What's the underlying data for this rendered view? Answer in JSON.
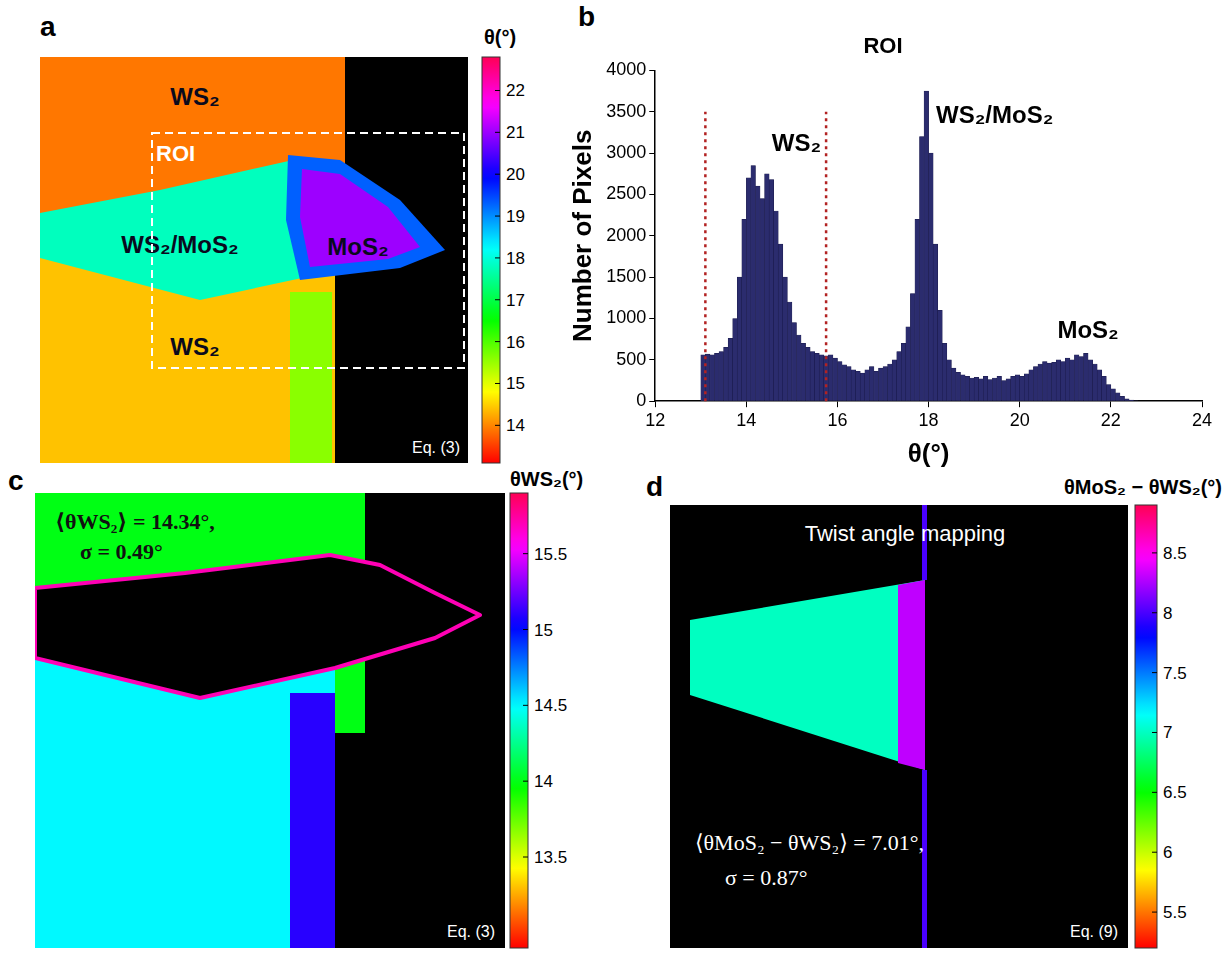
{
  "chart_data": [
    {
      "panel": "a",
      "type": "map",
      "colorbar": {
        "title": "θ(°)",
        "range": [
          13.1,
          22.8
        ],
        "ticks": [
          14,
          15,
          16,
          17,
          18,
          19,
          20,
          21,
          22
        ]
      },
      "regions": [
        {
          "label": "WS₂",
          "value": 13.9
        },
        {
          "label": "WS₂",
          "value": 14.4
        },
        {
          "label": null,
          "value": 15.6
        },
        {
          "label": "WS₂/MoS₂",
          "value": 17.8
        },
        {
          "label": null,
          "value": 19.3
        },
        {
          "label": "MoS₂",
          "value": 21.0
        }
      ],
      "annotations": [
        "ROI",
        "Eq. (3)"
      ]
    },
    {
      "panel": "b",
      "type": "histogram",
      "title": "ROI",
      "x_label": "θ(°)",
      "y_label": "Number of Pixels",
      "bins": [
        13,
        13.1,
        13.2,
        13.3,
        13.4,
        13.5,
        13.6,
        13.7,
        13.8,
        13.9,
        14,
        14.1,
        14.2,
        14.3,
        14.4,
        14.5,
        14.6,
        14.7,
        14.8,
        14.9,
        15,
        15.1,
        15.2,
        15.3,
        15.4,
        15.5,
        15.6,
        15.7,
        15.8,
        15.9,
        16,
        16.1,
        16.2,
        16.3,
        16.4,
        16.5,
        16.6,
        16.7,
        16.8,
        16.9,
        17,
        17.1,
        17.2,
        17.3,
        17.4,
        17.5,
        17.6,
        17.7,
        17.8,
        17.9,
        18,
        18.1,
        18.2,
        18.3,
        18.4,
        18.5,
        18.6,
        18.7,
        18.8,
        18.9,
        19,
        19.1,
        19.2,
        19.3,
        19.4,
        19.5,
        19.6,
        19.7,
        19.8,
        19.9,
        20,
        20.1,
        20.2,
        20.3,
        20.4,
        20.5,
        20.6,
        20.7,
        20.8,
        20.9,
        21,
        21.1,
        21.2,
        21.3,
        21.4,
        21.5,
        21.6,
        21.7,
        21.8,
        21.9,
        22,
        22.1,
        22.2,
        22.3,
        22.4,
        22.5,
        22.6
      ],
      "values": [
        560,
        570,
        560,
        580,
        600,
        650,
        760,
        1000,
        1500,
        2200,
        2700,
        2850,
        2600,
        2450,
        2750,
        2680,
        2300,
        1900,
        1500,
        1200,
        950,
        800,
        700,
        650,
        600,
        580,
        560,
        550,
        560,
        520,
        480,
        440,
        420,
        380,
        360,
        340,
        380,
        420,
        360,
        400,
        420,
        450,
        500,
        600,
        700,
        900,
        1300,
        2200,
        3200,
        3750,
        3000,
        1900,
        1100,
        700,
        500,
        400,
        350,
        320,
        300,
        280,
        290,
        270,
        300,
        260,
        280,
        300,
        250,
        270,
        300,
        320,
        300,
        330,
        380,
        420,
        450,
        480,
        460,
        470,
        500,
        480,
        520,
        500,
        560,
        540,
        580,
        500,
        450,
        380,
        300,
        200,
        150,
        100,
        60,
        30,
        15,
        5
      ],
      "color": "#2b2c6e",
      "xlim": [
        12,
        24
      ],
      "xticks": [
        12,
        14,
        16,
        18,
        20,
        22,
        24
      ],
      "ylim": [
        0,
        4000
      ],
      "yticks": [
        0,
        500,
        1000,
        1500,
        2000,
        2500,
        3000,
        3500,
        4000
      ],
      "grid": false,
      "vlines": {
        "x": [
          13.1,
          15.75
        ],
        "y": [
          0,
          3500
        ],
        "color": "#b22222",
        "line_style": "dotted"
      },
      "annotations": [
        {
          "text": "WS₂",
          "x": 15.1,
          "y": 3100
        },
        {
          "text": "WS₂/MoS₂",
          "x": 19.45,
          "y": 3450
        },
        {
          "text": "MoS₂",
          "x": 21.5,
          "y": 850
        }
      ]
    },
    {
      "panel": "c",
      "type": "map",
      "colorbar": {
        "title": "θWS₂(°)",
        "range": [
          12.9,
          15.9
        ],
        "ticks": [
          13.5,
          14,
          14.5,
          15,
          15.5
        ]
      },
      "regions": [
        {
          "label": null,
          "value": 14.0
        },
        {
          "label": null,
          "value": 14.5
        },
        {
          "label": null,
          "value": 15.1
        },
        {
          "label": null,
          "value": 15.7
        }
      ],
      "annotations": [
        "⟨θWS₂⟩ = 14.34°,",
        "σ = 0.49°",
        "Eq. (3)"
      ]
    },
    {
      "panel": "d",
      "type": "map",
      "colorbar": {
        "title": "θMoS₂ − θWS₂(°)",
        "range": [
          5.2,
          8.9
        ],
        "ticks": [
          5.5,
          6,
          6.5,
          7,
          7.5,
          8,
          8.5
        ]
      },
      "regions": [
        {
          "label": null,
          "value": 7.0
        },
        {
          "label": null,
          "value": 8.3
        },
        {
          "label": null,
          "value": 8.0
        }
      ],
      "annotations": [
        "Twist angle mapping",
        "⟨θMoS₂ − θWS₂⟩ = 7.01°,",
        "σ = 0.87°",
        "Eq. (9)"
      ]
    }
  ]
}
